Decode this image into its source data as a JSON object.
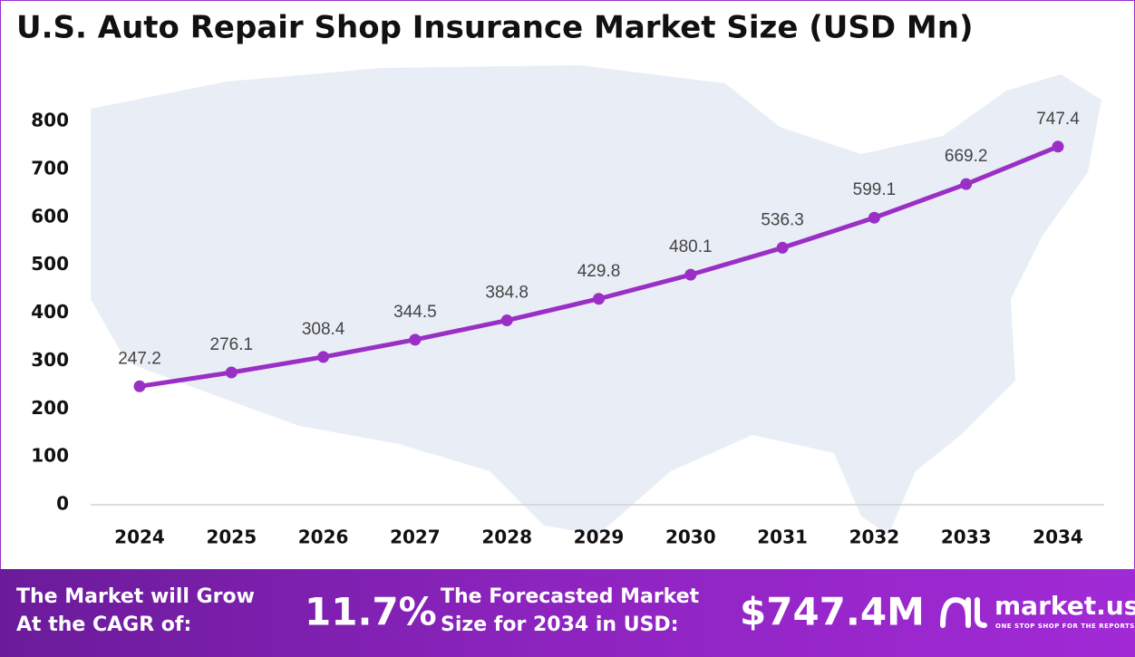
{
  "chart_data": {
    "type": "line",
    "title": "U.S. Auto Repair Shop Insurance Market Size (USD Mn)",
    "categories": [
      "2024",
      "2025",
      "2026",
      "2027",
      "2028",
      "2029",
      "2030",
      "2031",
      "2032",
      "2033",
      "2034"
    ],
    "values": [
      247.2,
      276.1,
      308.4,
      344.5,
      384.8,
      429.8,
      480.1,
      536.3,
      599.1,
      669.2,
      747.4
    ],
    "color": "#9a2fc6",
    "ylim": [
      0,
      800
    ],
    "yticks": [
      0,
      100,
      200,
      300,
      400,
      500,
      600,
      700,
      800
    ],
    "grid": false
  },
  "footer": {
    "cagr_text": [
      "The Market will Grow",
      "At the CAGR of:"
    ],
    "cagr_value": "11.7%",
    "forecast_text": [
      "The Forecasted Market",
      "Size for 2034 in USD:"
    ],
    "forecast_value": "$747.4M",
    "brand": "market.us",
    "tagline": "ONE STOP SHOP FOR THE REPORTS"
  }
}
